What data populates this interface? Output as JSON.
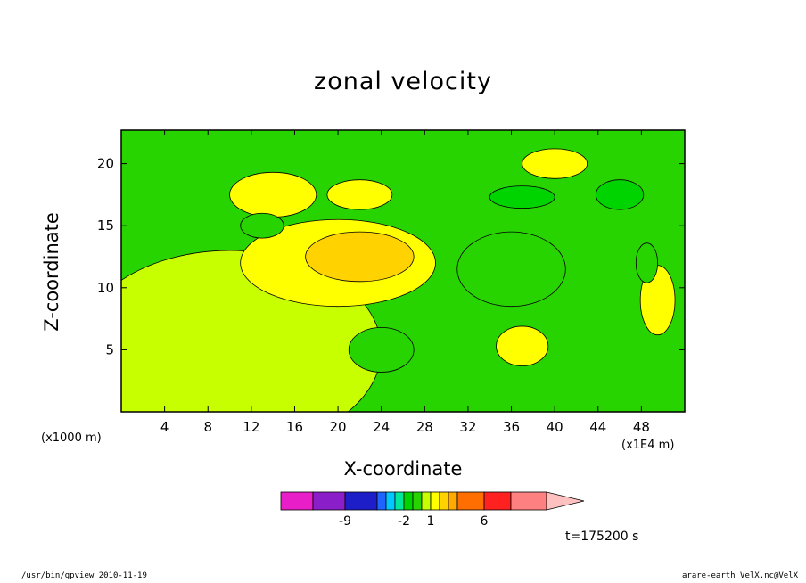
{
  "chart_data": {
    "type": "heatmap",
    "title": "zonal velocity",
    "xlabel": "X-coordinate",
    "ylabel": "Z-coordinate",
    "x_unit_note": "(x1000 m)",
    "x_scale_note": "(x1E4 m)",
    "time_label": "t=175200 s",
    "xlim": [
      0,
      52
    ],
    "ylim": [
      0,
      22.7
    ],
    "xticks": [
      "4",
      "8",
      "12",
      "16",
      "20",
      "24",
      "28",
      "32",
      "36",
      "40",
      "44",
      "48"
    ],
    "yticks": [
      "5",
      "10",
      "15",
      "20"
    ],
    "colorbar": {
      "levels": [
        -13,
        -11,
        -9,
        -7,
        -5,
        -3,
        -2,
        -1,
        0,
        1,
        2,
        3,
        4,
        6,
        8,
        10
      ],
      "colors": [
        "#e81ec8",
        "#8a1ec8",
        "#1e1ec8",
        "#1e64ff",
        "#00c8ff",
        "#00e89c",
        "#00d400",
        "#28d400",
        "#c8ff00",
        "#ffff00",
        "#ffd200",
        "#ffaa00",
        "#ff6e00",
        "#ff2020",
        "#ff8080",
        "#ffc0c0"
      ],
      "tick_labels": [
        "-9",
        "-2",
        "1",
        "6"
      ]
    },
    "field_regions": [
      {
        "level": "0",
        "cx": 10,
        "cy": 5,
        "rx": 14,
        "ry": 8
      },
      {
        "level": "1",
        "cx": 20,
        "cy": 12,
        "rx": 9,
        "ry": 3.5
      },
      {
        "level": "2",
        "cx": 22,
        "cy": 12.5,
        "rx": 5,
        "ry": 2
      },
      {
        "level": "1",
        "cx": 14,
        "cy": 17.5,
        "rx": 4,
        "ry": 1.8
      },
      {
        "level": "1",
        "cx": 22,
        "cy": 17.5,
        "rx": 3,
        "ry": 1.2
      },
      {
        "level": "-1",
        "cx": 36,
        "cy": 11.5,
        "rx": 5,
        "ry": 3
      },
      {
        "level": "-1",
        "cx": 24,
        "cy": 5,
        "rx": 3,
        "ry": 1.8
      },
      {
        "level": "-1",
        "cx": 13,
        "cy": 15,
        "rx": 2,
        "ry": 1
      },
      {
        "level": "-2",
        "cx": 37,
        "cy": 17.3,
        "rx": 3,
        "ry": 0.9
      },
      {
        "level": "-2",
        "cx": 46,
        "cy": 17.5,
        "rx": 2.2,
        "ry": 1.2
      },
      {
        "level": "1",
        "cx": 37,
        "cy": 5.3,
        "rx": 2.4,
        "ry": 1.6
      },
      {
        "level": "1",
        "cx": 40,
        "cy": 20,
        "rx": 3,
        "ry": 1.2
      },
      {
        "level": "1",
        "cx": 49.5,
        "cy": 9,
        "rx": 1.6,
        "ry": 2.8
      },
      {
        "level": "-1",
        "cx": 48.5,
        "cy": 12,
        "rx": 1,
        "ry": 1.6
      }
    ]
  },
  "footer": {
    "left": "/usr/bin/gpview   2010-11-19",
    "right": "arare-earth_VelX.nc@VelX"
  }
}
